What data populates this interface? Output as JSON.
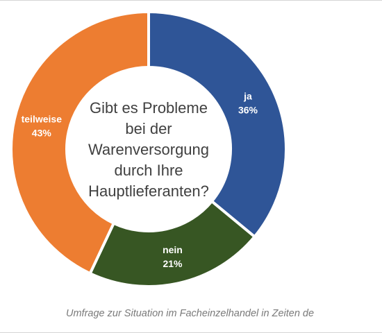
{
  "chart_data": {
    "type": "pie",
    "donut": true,
    "title_lines": [
      "Gibt es Probleme",
      "bei der",
      "Warenversorgung",
      "durch Ihre",
      "Hauptlieferanten?"
    ],
    "caption": "Umfrage zur Situation im Facheinzelhandel in Zeiten de",
    "slices": [
      {
        "label": "ja",
        "value": 36,
        "value_label": "36%",
        "color": "#2f5597"
      },
      {
        "label": "nein",
        "value": 21,
        "value_label": "21%",
        "color": "#375623"
      },
      {
        "label": "teilweise",
        "value": 43,
        "value_label": "43%",
        "color": "#ed7d31"
      }
    ]
  }
}
